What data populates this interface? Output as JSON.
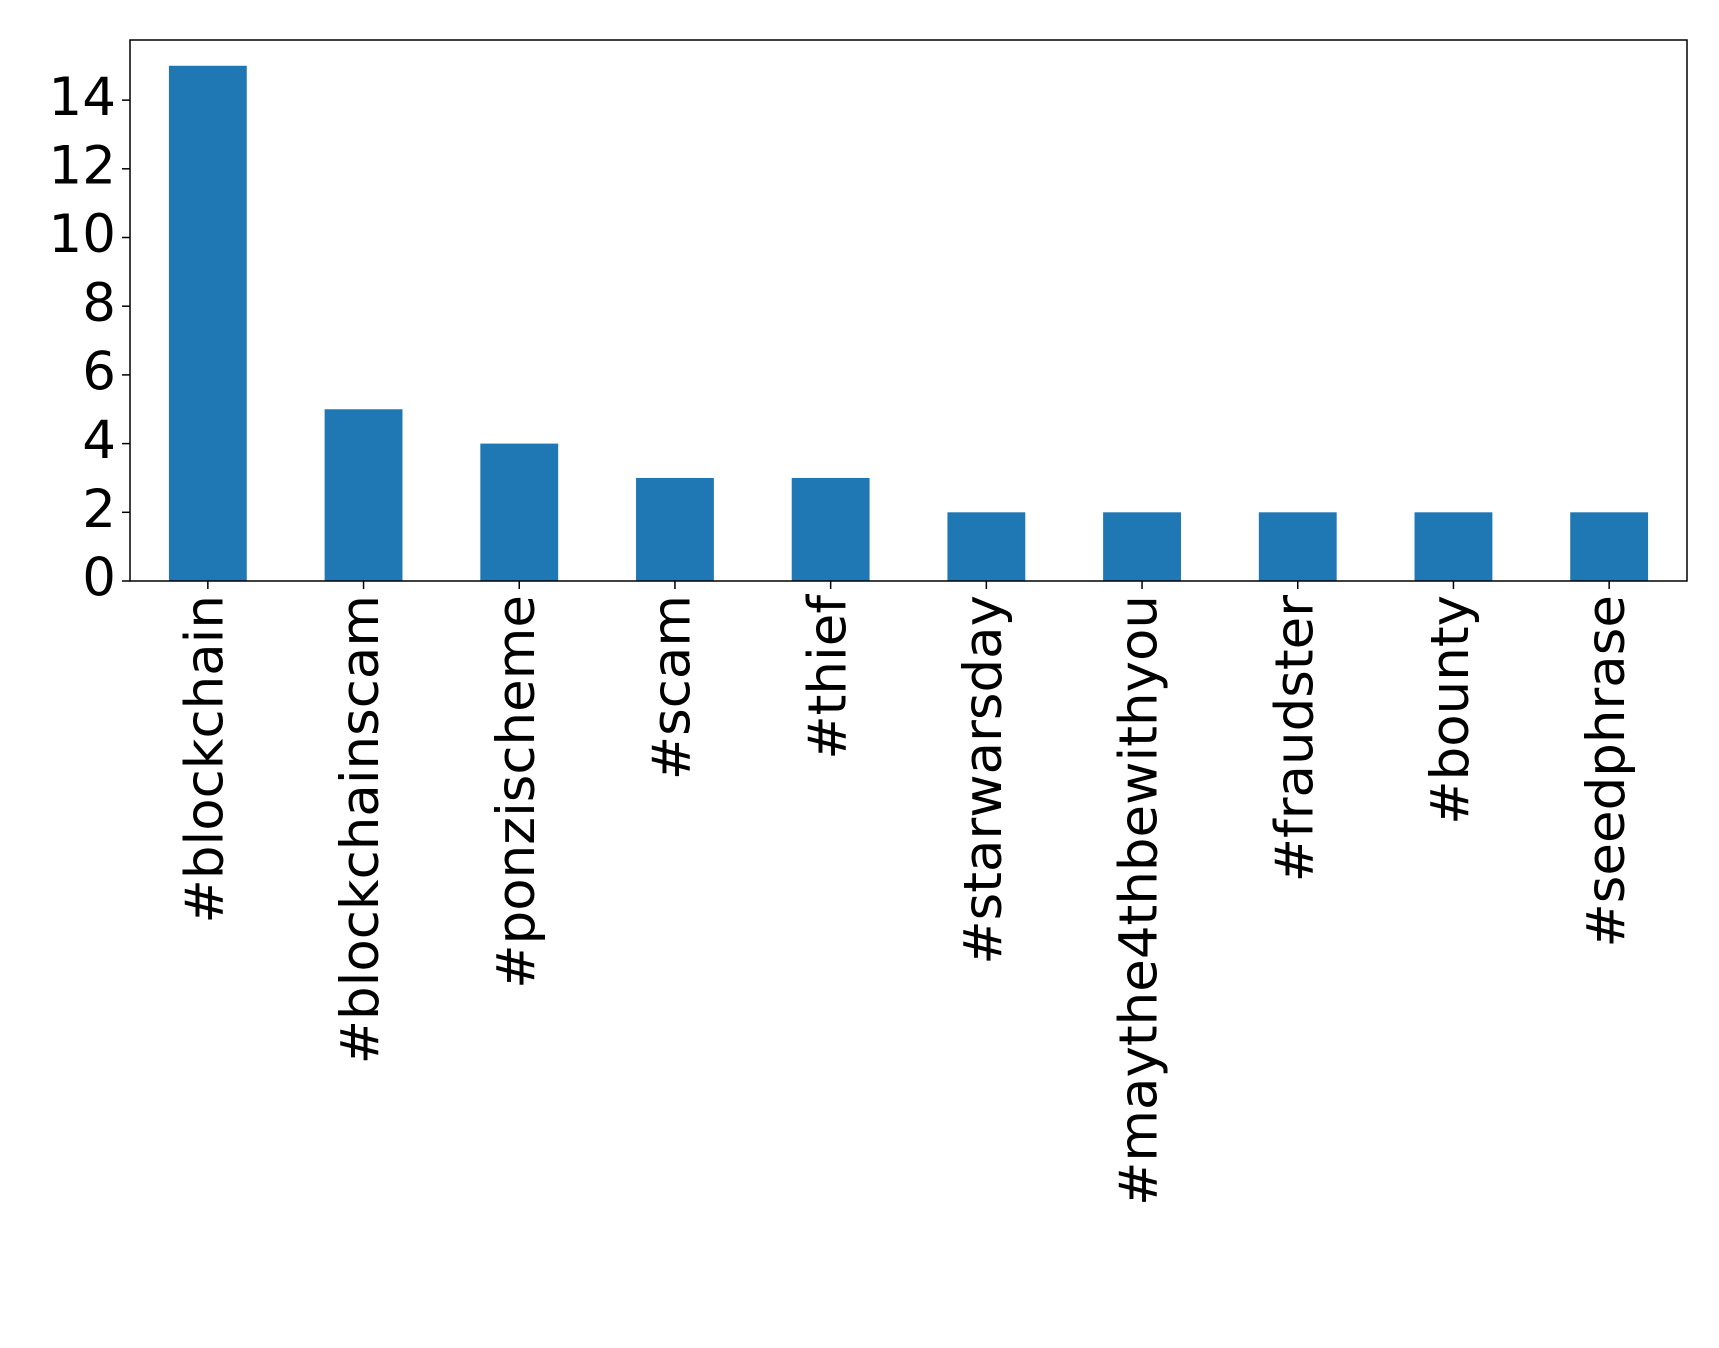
{
  "chart_data": {
    "type": "bar",
    "categories": [
      "#blockchain",
      "#blockchainscam",
      "#ponzischeme",
      "#scam",
      "#thief",
      "#starwarsday",
      "#maythe4thbewithyou",
      "#fraudster",
      "#bounty",
      "#seedphrase"
    ],
    "values": [
      15,
      5,
      4,
      3,
      3,
      2,
      2,
      2,
      2,
      2
    ],
    "color": "#1f77b4",
    "ylim": [
      0,
      15.75
    ],
    "yticks": [
      0,
      2,
      4,
      6,
      8,
      10,
      12,
      14
    ],
    "grid": false
  }
}
